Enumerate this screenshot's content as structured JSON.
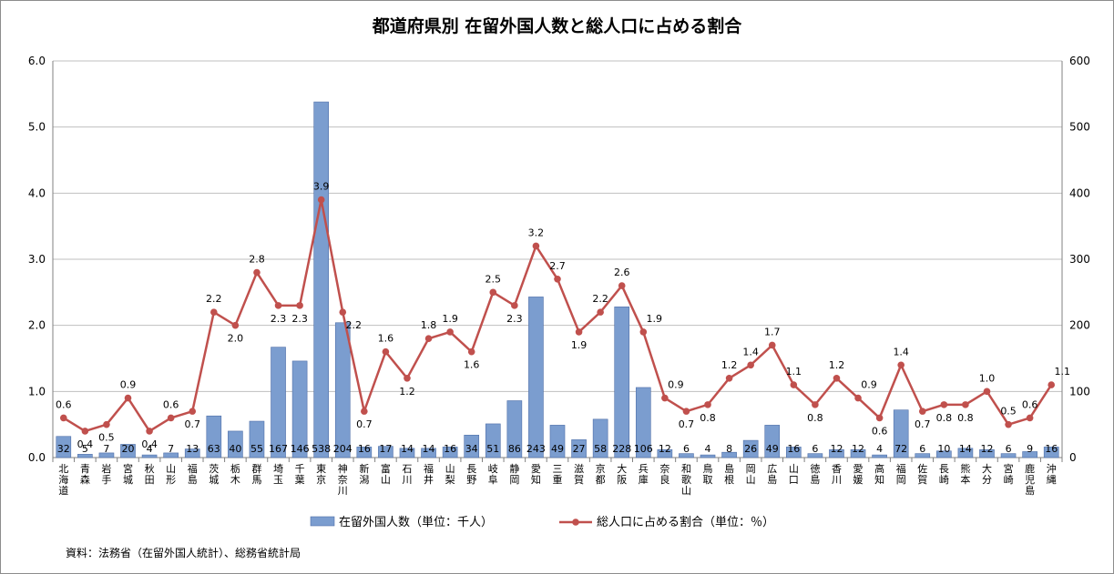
{
  "chart_data": {
    "type": "bar+line",
    "title": "都道府県別 在留外国人数と総人口に占める割合",
    "categories": [
      "北海道",
      "青森",
      "岩手",
      "宮城",
      "秋田",
      "山形",
      "福島",
      "茨城",
      "栃木",
      "群馬",
      "埼玉",
      "千葉",
      "東京",
      "神奈川",
      "新潟",
      "富山",
      "石川",
      "福井",
      "山梨",
      "長野",
      "岐阜",
      "静岡",
      "愛知",
      "三重",
      "滋賀",
      "京都",
      "大阪",
      "兵庫",
      "奈良",
      "和歌山",
      "鳥取",
      "島根",
      "岡山",
      "広島",
      "山口",
      "徳島",
      "香川",
      "愛媛",
      "高知",
      "福岡",
      "佐賀",
      "長崎",
      "熊本",
      "大分",
      "宮崎",
      "鹿児島",
      "沖縄"
    ],
    "left_axis": {
      "ylim": [
        0,
        6.0
      ],
      "ticks": [
        "0.0",
        "1.0",
        "2.0",
        "3.0",
        "4.0",
        "5.0",
        "6.0"
      ]
    },
    "right_axis": {
      "ylim": [
        0,
        600
      ],
      "ticks": [
        "0",
        "100",
        "200",
        "300",
        "400",
        "500",
        "600"
      ]
    },
    "series": [
      {
        "name": "在留外国人数（単位：千人）",
        "type": "bar",
        "axis": "right",
        "color": "#7b9dcf",
        "values": [
          32,
          5,
          7,
          20,
          4,
          7,
          13,
          63,
          40,
          55,
          167,
          146,
          538,
          204,
          16,
          17,
          14,
          14,
          16,
          34,
          51,
          86,
          243,
          49,
          27,
          58,
          228,
          106,
          12,
          6,
          4,
          8,
          26,
          49,
          16,
          6,
          12,
          12,
          4,
          72,
          6,
          10,
          14,
          12,
          6,
          9,
          16
        ]
      },
      {
        "name": "総人口に占める割合（単位：％）",
        "type": "line",
        "axis": "left",
        "color": "#c0504d",
        "values": [
          0.6,
          0.4,
          0.5,
          0.9,
          0.4,
          0.6,
          0.7,
          2.2,
          2.0,
          2.8,
          2.3,
          2.3,
          3.9,
          2.2,
          0.7,
          1.6,
          1.2,
          1.8,
          1.9,
          1.6,
          2.5,
          2.3,
          3.2,
          2.7,
          1.9,
          2.2,
          2.6,
          1.9,
          0.9,
          0.7,
          0.8,
          1.2,
          1.4,
          1.7,
          1.1,
          0.8,
          1.2,
          0.9,
          0.6,
          1.4,
          0.7,
          0.8,
          0.8,
          1.0,
          0.5,
          0.6,
          1.1
        ]
      }
    ],
    "legend_position": "bottom",
    "grid": true
  },
  "source_note": "資料：法務省（在留外国人統計）、総務省統計局"
}
